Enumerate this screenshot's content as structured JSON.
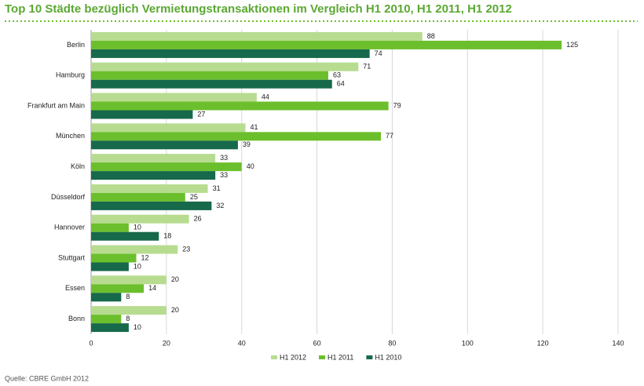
{
  "chart_data": {
    "type": "hbar",
    "title": "Top 10 Städte bezüglich Vermietungstransaktionen im Vergleich H1 2010, H1 2011, H1 2012",
    "source": "Quelle: CBRE GmbH 2012",
    "categories": [
      "Berlin",
      "Hamburg",
      "Frankfurt am Main",
      "München",
      "Köln",
      "Düsseldorf",
      "Hannover",
      "Stuttgart",
      "Essen",
      "Bonn"
    ],
    "series": [
      {
        "name": "H1 2012",
        "color": "#b7dc90",
        "values": [
          88,
          71,
          44,
          41,
          33,
          31,
          26,
          23,
          20,
          20
        ]
      },
      {
        "name": "H1 2011",
        "color": "#6cbf2c",
        "values": [
          125,
          63,
          79,
          77,
          40,
          25,
          10,
          12,
          14,
          8
        ]
      },
      {
        "name": "H1 2010",
        "color": "#17694b",
        "values": [
          74,
          64,
          27,
          39,
          33,
          32,
          18,
          10,
          8,
          10
        ]
      }
    ],
    "xlim": [
      0,
      140
    ],
    "xticks": [
      0,
      20,
      40,
      60,
      80,
      100,
      120,
      140
    ],
    "grid": true
  }
}
